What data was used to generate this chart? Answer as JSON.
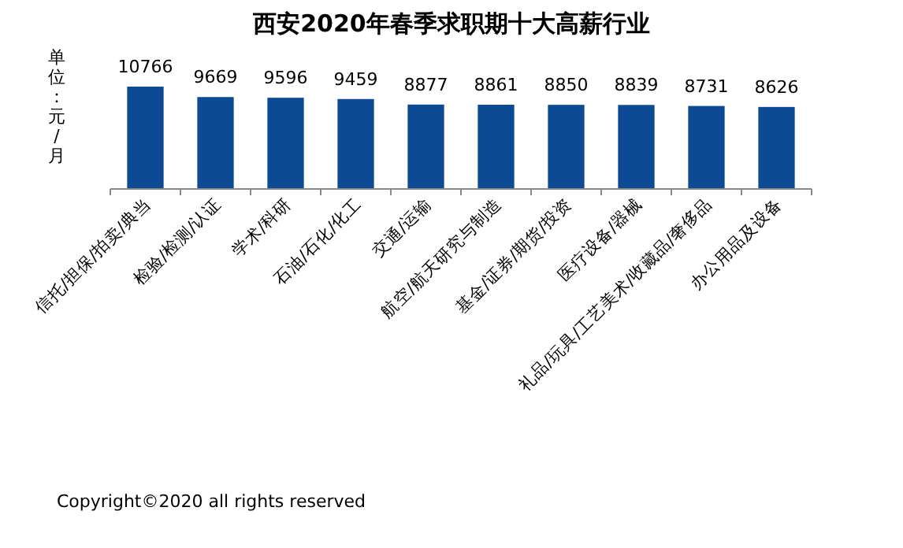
{
  "chart_data": {
    "type": "bar",
    "title": "西安2020年春季求职期十大高薪行业",
    "ylabel": "单位：元/月",
    "categories": [
      "信托/担保/拍卖/典当",
      "检验/检测/认证",
      "学术/科研",
      "石油/石化/化工",
      "交通/运输",
      "航空/航天研究与制造",
      "基金/证券/期货/投资",
      "医疗设备/器械",
      "礼品/玩具/工艺美术/收藏品/奢侈品",
      "办公用品及设备"
    ],
    "values": [
      10766,
      9669,
      9596,
      9459,
      8877,
      8861,
      8850,
      8839,
      8731,
      8626
    ],
    "color": "#0d4a94",
    "data_labels": true,
    "annotations": [
      "Copyright©2020 all rights reserved"
    ]
  }
}
